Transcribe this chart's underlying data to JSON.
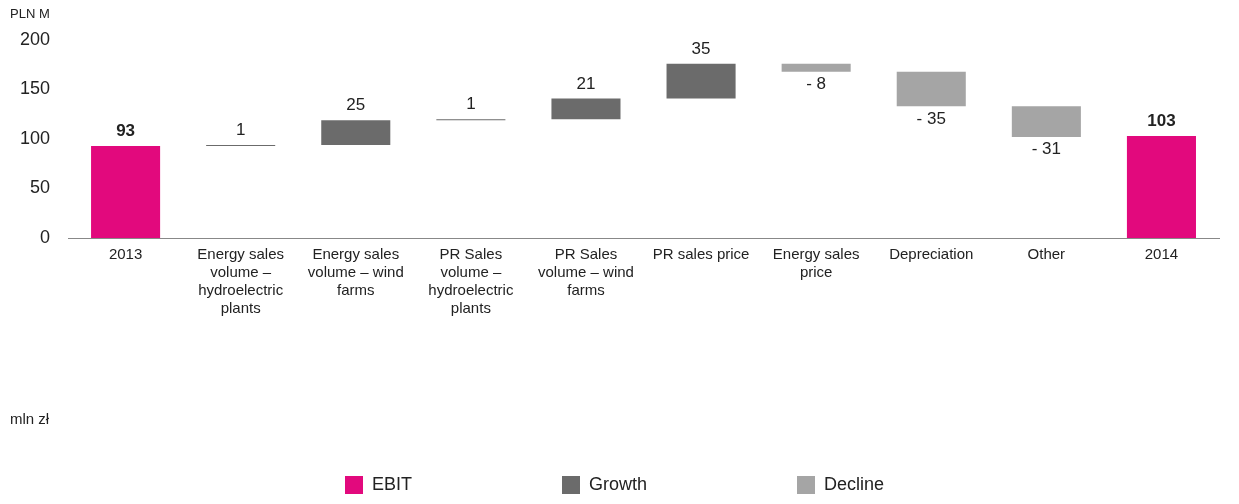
{
  "chart_data": {
    "type": "bar",
    "ylabel": "PLN M",
    "categories": [
      "2013",
      "Energy sales volume – hydroelectric plants",
      "Energy sales volume – wind farms",
      "PR Sales volume – hydroelectric plants",
      "PR Sales volume – wind farms",
      "PR sales price",
      "Energy sales price",
      "Depreciation",
      "Other",
      "2014"
    ],
    "series": [
      {
        "name": "EBIT",
        "color": "#e2097d",
        "values": [
          93,
          null,
          null,
          null,
          null,
          null,
          null,
          null,
          null,
          103
        ],
        "base": [
          0,
          null,
          null,
          null,
          null,
          null,
          null,
          null,
          null,
          0
        ],
        "value_labels": [
          "93",
          null,
          null,
          null,
          null,
          null,
          null,
          null,
          null,
          "103"
        ]
      },
      {
        "name": "Growth",
        "color": "#6b6b6b",
        "values": [
          null,
          1,
          25,
          1,
          21,
          35,
          null,
          null,
          null,
          null
        ],
        "base": [
          null,
          93,
          94,
          119,
          120,
          141,
          null,
          null,
          null,
          null
        ],
        "value_labels": [
          null,
          "1",
          "25",
          "1",
          "21",
          "35",
          null,
          null,
          null,
          null
        ]
      },
      {
        "name": "Decline",
        "color": "#a5a5a5",
        "values": [
          null,
          null,
          null,
          null,
          null,
          null,
          -8,
          -35,
          -31,
          null
        ],
        "base": [
          null,
          null,
          null,
          null,
          null,
          null,
          176,
          168,
          133,
          null
        ],
        "value_labels": [
          null,
          null,
          null,
          null,
          null,
          null,
          "- 8",
          "- 35",
          "- 31",
          null
        ]
      }
    ],
    "ylim": [
      0,
      200
    ],
    "yticks": [
      0,
      50,
      100,
      150,
      200
    ],
    "grid": false,
    "legend": "bottom",
    "annotations": [
      "mln zł"
    ]
  }
}
